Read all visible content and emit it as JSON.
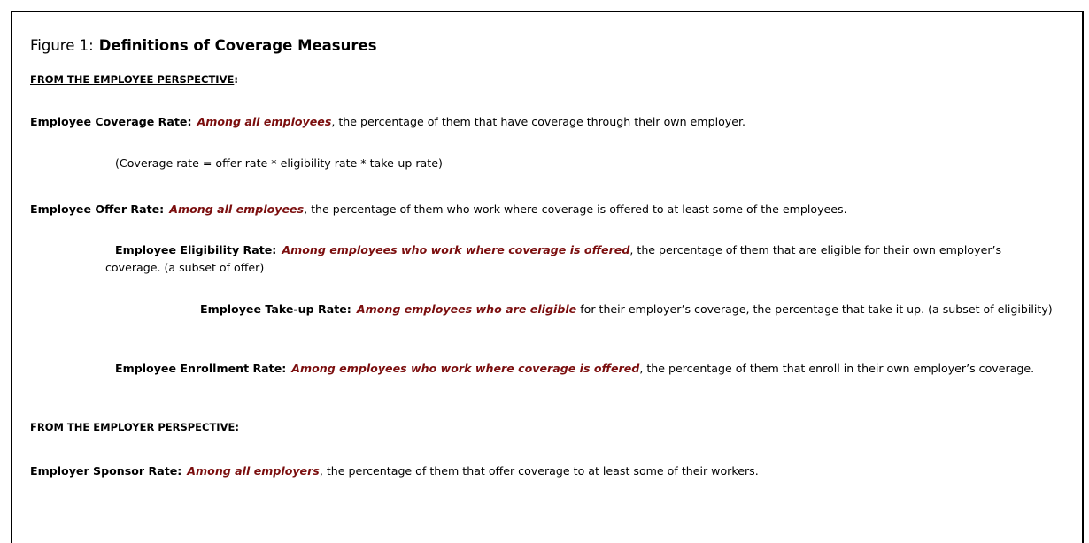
{
  "figure": {
    "label": "Figure 1:",
    "title": "Definitions of Coverage Measures"
  },
  "sections": [
    {
      "heading": "FROM THE EMPLOYEE PERSPECTIVE",
      "heading_end": ":",
      "paragraphs": [
        {
          "term": "Employee Coverage Rate:",
          "emphasis": "Among all employees",
          "text": ", the percentage of them that have coverage through their own employer."
        },
        {
          "text": "(Coverage rate = offer rate * eligibility rate * take-up rate)"
        },
        {
          "term": "Employee Offer Rate:",
          "emphasis": "Among all employees",
          "text": ", the percentage of them who work where coverage is offered to at least some of the employees."
        },
        {
          "term": "Employee Eligibility Rate:",
          "emphasis": "Among employees who work where coverage is offered",
          "text": ", the percentage of them that are eligible for their own employer’s coverage.  (a subset of offer)"
        },
        {
          "term": "Employee Take-up Rate:",
          "emphasis": "Among employees who are eligible",
          "text": " for their employer’s coverage, the percentage that take it up. (a subset of eligibility)"
        },
        {
          "term": "Employee Enrollment Rate:",
          "emphasis": "Among employees who work where coverage is offered",
          "text": ", the percentage of them that enroll in their own employer’s coverage."
        }
      ]
    },
    {
      "heading": "FROM THE EMPLOYER PERSPECTIVE",
      "heading_end": ":",
      "paragraphs": [
        {
          "term": "Employer Sponsor Rate:",
          "emphasis": "Among all employers",
          "text": ", the percentage of them that offer coverage to at least some of their workers."
        }
      ]
    }
  ]
}
